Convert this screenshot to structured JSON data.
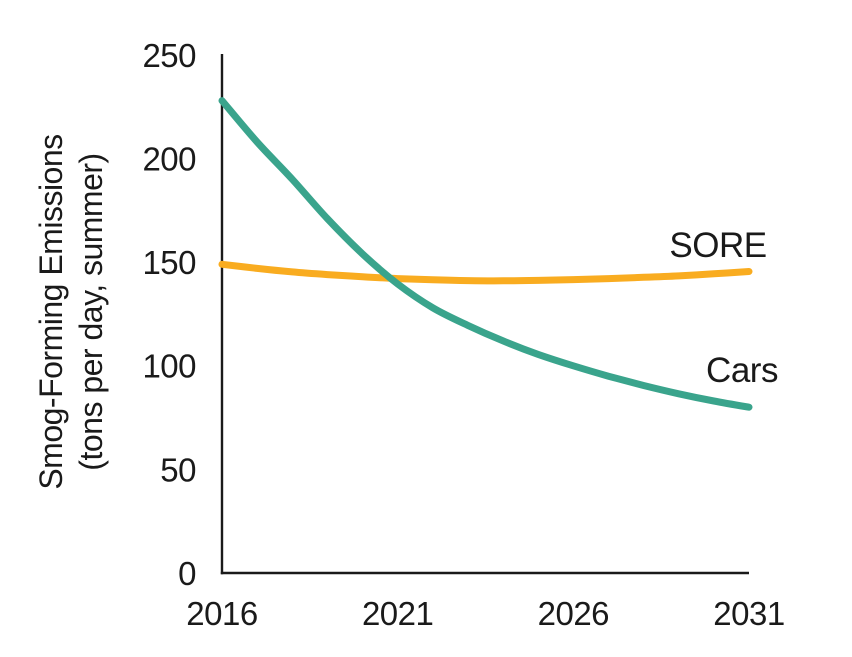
{
  "figure": {
    "background": "#ffffff"
  },
  "chart_data": {
    "type": "line",
    "title": "",
    "ylabel_line1": "Smog-Forming Emissions",
    "ylabel_line2": "(tons per day, summer)",
    "xlabel": "",
    "xlim": [
      2016,
      2031
    ],
    "ylim": [
      0,
      250
    ],
    "xticks": [
      2016,
      2021,
      2026,
      2031
    ],
    "yticks": [
      0,
      50,
      100,
      150,
      200,
      250
    ],
    "grid": false,
    "legend": "inline-labels-at-line-end",
    "axis_color": "#1a1a1a",
    "text_color": "#1a1a1a",
    "x": [
      2016,
      2017,
      2018,
      2019,
      2020,
      2021,
      2022,
      2023,
      2024,
      2025,
      2026,
      2027,
      2028,
      2029,
      2030,
      2031
    ],
    "series": [
      {
        "name": "SORE",
        "color": "#f9ac20",
        "values": [
          149,
          147,
          145.3,
          144,
          143,
          142.1,
          141.5,
          141.1,
          141,
          141.2,
          141.6,
          142.1,
          142.7,
          143.4,
          144.4,
          145.5
        ]
      },
      {
        "name": "Cars",
        "color": "#3aa48c",
        "values": [
          228,
          208,
          190,
          171,
          154,
          139.5,
          128,
          119.5,
          112,
          105.5,
          100,
          95,
          90.5,
          86.5,
          83,
          80
        ]
      }
    ]
  }
}
